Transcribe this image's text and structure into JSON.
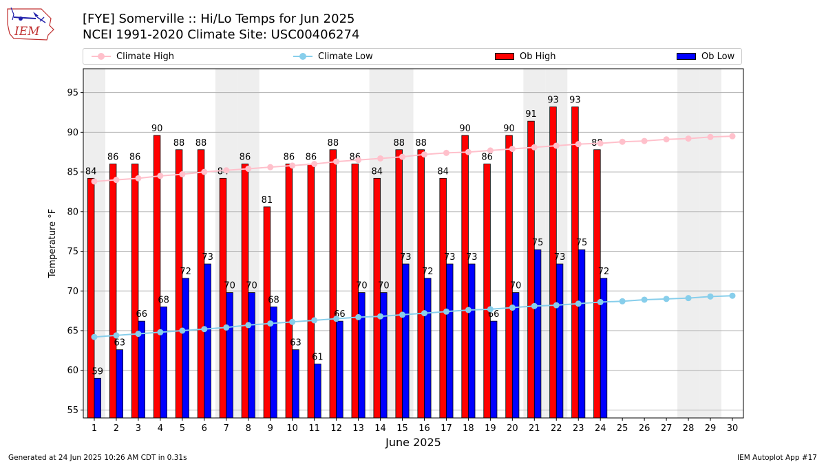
{
  "header": {
    "title_line1": "[FYE] Somerville :: Hi/Lo Temps for Jun 2025",
    "title_line2": "NCEI 1991-2020 Climate Site: USC00406274",
    "logo_text": "IEM"
  },
  "legend": [
    {
      "label": "Climate High",
      "kind": "line",
      "color": "#ffc0cb"
    },
    {
      "label": "Climate Low",
      "kind": "line",
      "color": "#87ceeb"
    },
    {
      "label": "Ob High",
      "kind": "patch",
      "color": "#ff0000"
    },
    {
      "label": "Ob Low",
      "kind": "patch",
      "color": "#0000ff"
    }
  ],
  "footer": {
    "left": "Generated at 24 Jun 2025 10:26 AM CDT in 0.31s",
    "right": "IEM Autoplot App #17"
  },
  "chart_data": {
    "type": "bar",
    "xlabel": "June 2025",
    "ylabel": "Temperature °F",
    "ylim": [
      54,
      98
    ],
    "yticks": [
      55,
      60,
      65,
      70,
      75,
      80,
      85,
      90,
      95
    ],
    "days": [
      1,
      2,
      3,
      4,
      5,
      6,
      7,
      8,
      9,
      10,
      11,
      12,
      13,
      14,
      15,
      16,
      17,
      18,
      19,
      20,
      21,
      22,
      23,
      24,
      25,
      26,
      27,
      28,
      29,
      30
    ],
    "weekend_days": [
      1,
      7,
      8,
      14,
      15,
      21,
      22,
      28,
      29
    ],
    "grid": true,
    "legend_position": "top",
    "series": [
      {
        "name": "Ob High",
        "type": "bar",
        "color": "#ff0000",
        "values": [
          84,
          86,
          86,
          90,
          88,
          88,
          84,
          86,
          81,
          86,
          86,
          88,
          86,
          84,
          88,
          88,
          84,
          90,
          86,
          90,
          91,
          93,
          93,
          88
        ],
        "exact": [
          84.2,
          86.0,
          86.0,
          89.6,
          87.8,
          87.8,
          84.2,
          86.0,
          80.6,
          86.0,
          86.0,
          87.8,
          86.0,
          84.2,
          87.8,
          87.8,
          84.2,
          89.6,
          86.0,
          89.6,
          91.4,
          93.2,
          93.2,
          87.8
        ]
      },
      {
        "name": "Ob Low",
        "type": "bar",
        "color": "#0000ff",
        "values": [
          59,
          63,
          66,
          68,
          72,
          73,
          70,
          70,
          68,
          63,
          61,
          66,
          70,
          70,
          73,
          72,
          73,
          73,
          66,
          70,
          75,
          73,
          75,
          72
        ],
        "exact": [
          59.0,
          62.6,
          66.2,
          68.0,
          71.6,
          73.4,
          69.8,
          69.8,
          68.0,
          62.6,
          60.8,
          66.2,
          69.8,
          69.8,
          73.4,
          71.6,
          73.4,
          73.4,
          66.2,
          69.8,
          75.2,
          73.4,
          75.2,
          71.6
        ]
      },
      {
        "name": "Climate High",
        "type": "line",
        "color": "#ffc0cb",
        "values": [
          83.8,
          84.0,
          84.2,
          84.5,
          84.7,
          85.0,
          85.2,
          85.4,
          85.6,
          85.8,
          86.0,
          86.3,
          86.5,
          86.7,
          86.9,
          87.2,
          87.4,
          87.5,
          87.7,
          87.9,
          88.1,
          88.3,
          88.5,
          88.6,
          88.8,
          88.9,
          89.1,
          89.2,
          89.4,
          89.5
        ]
      },
      {
        "name": "Climate Low",
        "type": "line",
        "color": "#87ceeb",
        "values": [
          64.2,
          64.4,
          64.6,
          64.8,
          65.0,
          65.2,
          65.4,
          65.7,
          65.9,
          66.1,
          66.3,
          66.5,
          66.7,
          66.8,
          67.0,
          67.2,
          67.4,
          67.6,
          67.7,
          67.9,
          68.1,
          68.2,
          68.4,
          68.6,
          68.7,
          68.9,
          69.0,
          69.1,
          69.3,
          69.4
        ]
      }
    ]
  }
}
